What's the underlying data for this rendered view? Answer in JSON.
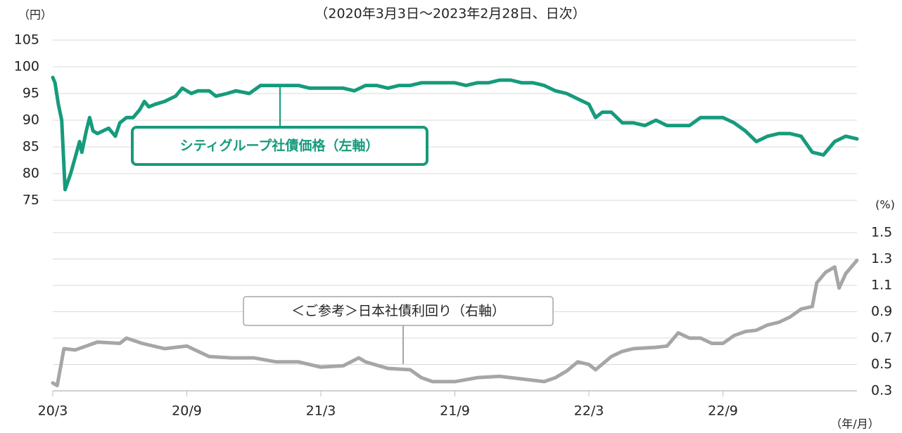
{
  "chart_data": {
    "type": "line",
    "title": "（2020年3月3日～2023年2月28日、日次）",
    "y_label": "（円）",
    "y2_label": "(%)",
    "x_label": "（年/月）",
    "xlim": [
      0,
      36
    ],
    "xticks": [
      {
        "value": 0,
        "label": "20/3"
      },
      {
        "value": 6,
        "label": "20/9"
      },
      {
        "value": 12,
        "label": "21/3"
      },
      {
        "value": 18,
        "label": "21/9"
      },
      {
        "value": 24,
        "label": "22/3"
      },
      {
        "value": 30,
        "label": "22/9"
      }
    ],
    "ylim": [
      75,
      105
    ],
    "yticks": [
      75,
      80,
      85,
      90,
      95,
      100,
      105
    ],
    "y2lim": [
      0.3,
      1.5
    ],
    "y2ticks": [
      0.3,
      0.5,
      0.7,
      0.9,
      1.1,
      1.3,
      1.5
    ],
    "grid": true,
    "series": [
      {
        "name": "シティグループ社債価格（左軸）",
        "color": "#169b7c",
        "x": [
          0,
          0.1,
          0.25,
          0.4,
          0.55,
          0.8,
          1.0,
          1.2,
          1.3,
          1.5,
          1.65,
          1.8,
          2.0,
          2.5,
          2.8,
          3.0,
          3.3,
          3.6,
          3.9,
          4.1,
          4.3,
          4.6,
          5,
          5.5,
          5.8,
          6.2,
          6.5,
          7,
          7.3,
          7.8,
          8.2,
          8.8,
          9.3,
          10,
          10.5,
          11,
          11.5,
          12,
          12.5,
          13,
          13.5,
          14,
          14.5,
          15,
          15.5,
          16,
          16.5,
          17,
          17.5,
          18,
          18.5,
          19,
          19.5,
          20,
          20.5,
          21,
          21.5,
          22,
          22.5,
          23,
          23.5,
          24,
          24.3,
          24.6,
          25,
          25.5,
          26,
          26.5,
          27,
          27.5,
          28,
          28.5,
          29,
          29.5,
          30,
          30.5,
          31,
          31.5,
          32,
          32.5,
          33,
          33.5,
          34,
          34.5,
          35,
          35.5,
          36
        ],
        "values": [
          98,
          97,
          93,
          90,
          77,
          80,
          83,
          86,
          84,
          88,
          90.5,
          88,
          87.5,
          88.5,
          87,
          89.5,
          90.5,
          90.5,
          92,
          93.5,
          92.5,
          93,
          93.5,
          94.5,
          96,
          95,
          95.5,
          95.5,
          94.5,
          95,
          95.5,
          95,
          96.5,
          96.5,
          96.5,
          96.5,
          96,
          96,
          96,
          96,
          95.5,
          96.5,
          96.5,
          96,
          96.5,
          96.5,
          97,
          97,
          97,
          97,
          96.5,
          97,
          97,
          97.5,
          97.5,
          97,
          97,
          96.5,
          95.5,
          95,
          94,
          93,
          90.5,
          91.5,
          91.5,
          89.5,
          89.5,
          89,
          90,
          89,
          89,
          89,
          90.5,
          90.5,
          90.5,
          89.5,
          88,
          86,
          87,
          87.5,
          87.5,
          87,
          84,
          83.5,
          86,
          87,
          86.5
        ]
      },
      {
        "name": "＜ご参考＞日本社債利回り（右軸）",
        "color": "#a6a6a6",
        "axis": "y2",
        "x": [
          0,
          0.2,
          0.5,
          1,
          2,
          3,
          3.3,
          4,
          5,
          6,
          7,
          8,
          9,
          10,
          11,
          12,
          13,
          13.7,
          14,
          15,
          16,
          16.5,
          17,
          18,
          19,
          20,
          21,
          22,
          22.5,
          23,
          23.5,
          24,
          24.3,
          25,
          25.5,
          26,
          27,
          27.5,
          28,
          28.5,
          29,
          29.5,
          30,
          30.5,
          31,
          31.5,
          32,
          32.5,
          33,
          33.5,
          34,
          34.2,
          34.6,
          35,
          35.2,
          35.5,
          36
        ],
        "values": [
          0.36,
          0.34,
          0.62,
          0.61,
          0.67,
          0.66,
          0.7,
          0.66,
          0.62,
          0.64,
          0.56,
          0.55,
          0.55,
          0.52,
          0.52,
          0.48,
          0.49,
          0.55,
          0.52,
          0.47,
          0.46,
          0.4,
          0.37,
          0.37,
          0.4,
          0.41,
          0.39,
          0.37,
          0.4,
          0.45,
          0.52,
          0.5,
          0.46,
          0.56,
          0.6,
          0.62,
          0.63,
          0.64,
          0.74,
          0.7,
          0.7,
          0.66,
          0.66,
          0.72,
          0.75,
          0.76,
          0.8,
          0.82,
          0.86,
          0.92,
          0.94,
          1.12,
          1.2,
          1.24,
          1.08,
          1.19,
          1.29
        ]
      }
    ]
  }
}
